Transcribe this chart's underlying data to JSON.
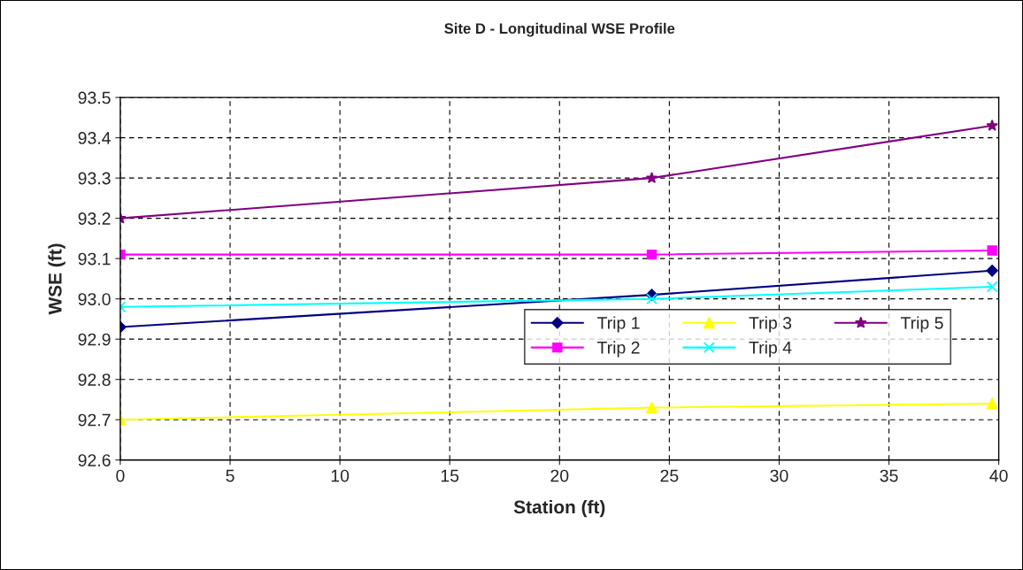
{
  "chart_data": {
    "type": "line",
    "title": "Site D - Longitudinal WSE Profile",
    "xlabel": "Station (ft)",
    "ylabel": "WSE (ft)",
    "x": [
      0,
      24.2,
      39.7
    ],
    "series": [
      {
        "name": "Trip 1",
        "color": "#000080",
        "marker": "diamond",
        "values": [
          92.93,
          93.01,
          93.07
        ]
      },
      {
        "name": "Trip 2",
        "color": "#ff00ff",
        "marker": "square",
        "values": [
          93.11,
          93.11,
          93.12
        ]
      },
      {
        "name": "Trip 3",
        "color": "#ffff00",
        "marker": "triangle",
        "values": [
          92.7,
          92.73,
          92.74
        ]
      },
      {
        "name": "Trip 4",
        "color": "#00ffff",
        "marker": "cross",
        "values": [
          92.98,
          93.0,
          93.03
        ]
      },
      {
        "name": "Trip 5",
        "color": "#800080",
        "marker": "star",
        "values": [
          93.2,
          93.3,
          93.43
        ]
      }
    ],
    "xlim": [
      0,
      40
    ],
    "xticks": [
      0,
      5,
      10,
      15,
      20,
      25,
      30,
      35,
      40
    ],
    "ylim": [
      92.6,
      93.5
    ],
    "yticks": [
      {
        "value": 92.6,
        "label": "92.6"
      },
      {
        "value": 92.7,
        "label": "92.7"
      },
      {
        "value": 92.8,
        "label": "92.8"
      },
      {
        "value": 92.9,
        "label": "92.9"
      },
      {
        "value": 93.0,
        "label": "93.0"
      },
      {
        "value": 93.1,
        "label": "93.1"
      },
      {
        "value": 93.2,
        "label": "93.2"
      },
      {
        "value": 93.3,
        "label": "93.3"
      },
      {
        "value": 93.4,
        "label": "93.4"
      },
      {
        "value": 93.5,
        "label": "93.5"
      }
    ],
    "grid": true,
    "legend": "right",
    "line_style": "solid"
  }
}
